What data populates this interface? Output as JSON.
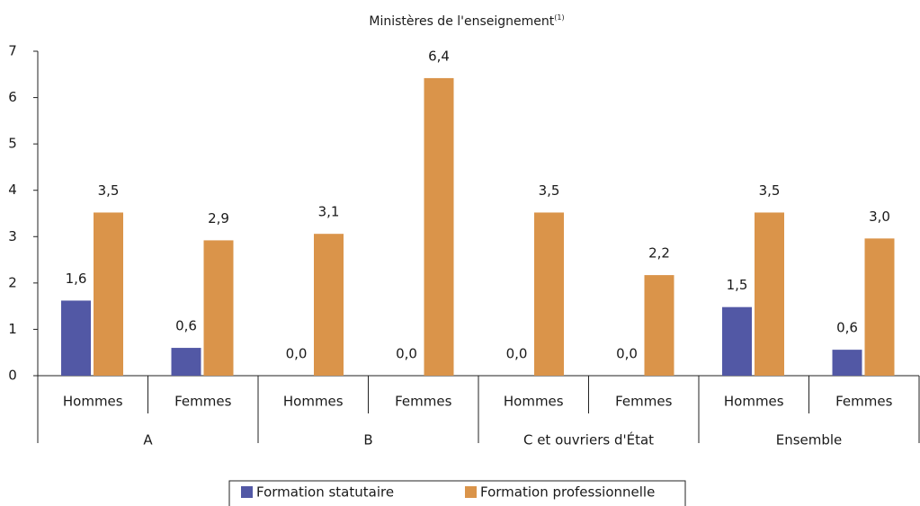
{
  "chart_data": {
    "type": "bar",
    "title": "Ministères de l'enseignement",
    "title_note": "(1)",
    "categories": [
      "Hommes",
      "Femmes",
      "Hommes",
      "Femmes",
      "Hommes",
      "Femmes",
      "Hommes",
      "Femmes"
    ],
    "groups": [
      "A",
      "B",
      "C et ouvriers d'État",
      "Ensemble"
    ],
    "series": [
      {
        "name": "Formation statutaire",
        "color": "#5258a5",
        "values": [
          1.62,
          0.6,
          0,
          0,
          0,
          0,
          1.48,
          0.56
        ],
        "value_labels": [
          "1,6",
          "0,6",
          "0,0",
          "0,0",
          "0,0",
          "0,0",
          "1,5",
          "0,6"
        ]
      },
      {
        "name": "Formation professionnelle",
        "color": "#da944a",
        "values": [
          3.52,
          2.92,
          3.06,
          6.42,
          3.52,
          2.17,
          3.52,
          2.96
        ],
        "value_labels": [
          "3,5",
          "2,9",
          "3,1",
          "6,4",
          "3,5",
          "2,2",
          "3,5",
          "3,0"
        ]
      }
    ],
    "ylim": [
      0,
      7
    ],
    "yticks": [
      0,
      1,
      2,
      3,
      4,
      5,
      6,
      7
    ],
    "grid": false
  }
}
